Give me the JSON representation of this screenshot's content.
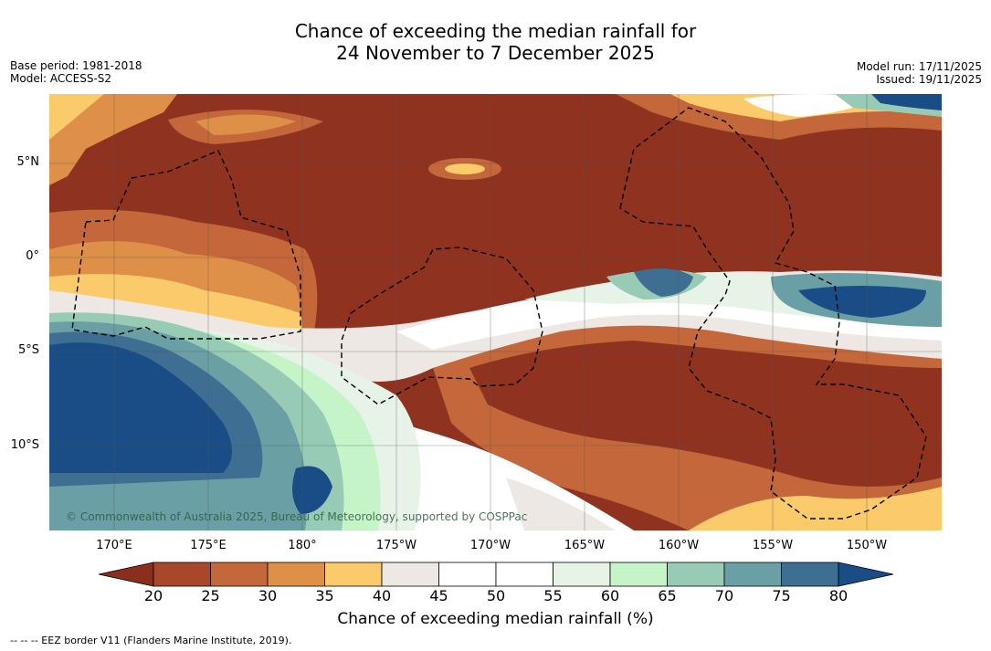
{
  "title": {
    "line1": "Chance of exceeding the median rainfall for",
    "line2": "24 November to 7 December 2025"
  },
  "meta_left": {
    "base_period": "Base period: 1981-2018",
    "model": "Model: ACCESS-S2"
  },
  "meta_right": {
    "model_run": "Model run: 17/11/2025",
    "issued": "Issued: 19/11/2025"
  },
  "map": {
    "lat_labels": [
      "5°N",
      "0°",
      "5°S",
      "10°S"
    ],
    "lon_labels": [
      "170°E",
      "175°E",
      "180°",
      "175°W",
      "170°W",
      "165°W",
      "160°W",
      "155°W",
      "150°W"
    ],
    "copyright": "© Commonwealth of Australia 2025, Bureau of Meteorology, supported by COSPPac"
  },
  "colorbar": {
    "ticks": [
      "20",
      "25",
      "30",
      "35",
      "40",
      "45",
      "50",
      "55",
      "60",
      "65",
      "70",
      "75",
      "80"
    ],
    "colors": {
      "below20": "#8a2f1c",
      "c20_25": "#a9472b",
      "c25_30": "#c4673a",
      "c30_35": "#de9048",
      "c35_40": "#fbca6b",
      "c40_45": "#ede8e4",
      "c45_50": "#ffffff",
      "c50_55": "#ffffff",
      "c55_60": "#e8f3e8",
      "c60_65": "#c6f4c9",
      "c65_70": "#98cbb5",
      "c70_75": "#6a9fa5",
      "c75_80": "#3e6e92",
      "above80": "#1a4d86"
    },
    "label": "Chance of exceeding median rainfall (%)"
  },
  "footnote": "--  --  -- EEZ border V11 (Flanders Marine Institute, 2019)."
}
